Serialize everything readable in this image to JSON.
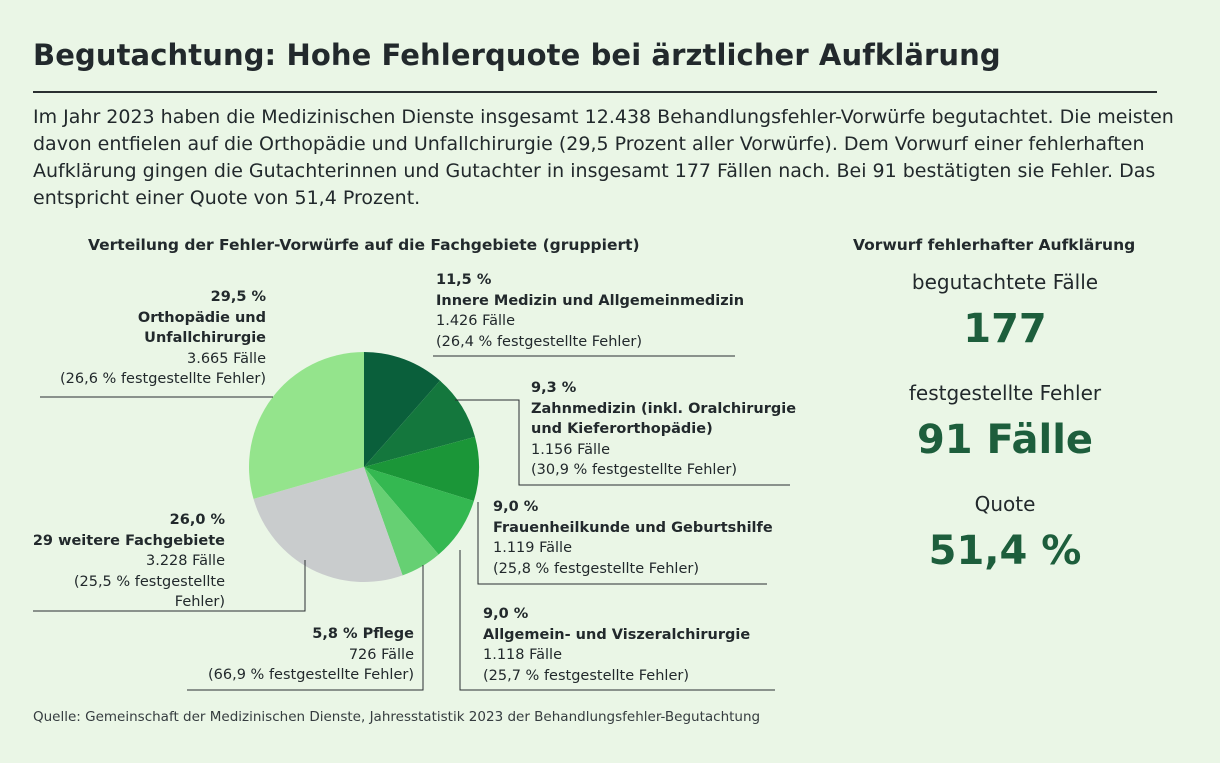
{
  "title": "Begutachtung: Hohe Fehlerquote bei ärztlicher Aufklärung",
  "intro": "Im Jahr 2023 haben die Medizinischen Dienste insgesamt 12.438 Behandlungsfehler-Vorwürfe begutachtet. Die meisten davon entfielen auf die Orthopädie und Unfallchirurgie (29,5 Prozent aller Vorwürfe). Dem Vorwurf einer fehlerhaften Aufklärung gingen die Gutachterinnen und Gutachter in insgesamt 177 Fällen nach. Bei 91 bestätigten sie Fehler. Das entspricht einer Quote von 51,4 Prozent.",
  "source": "Quelle: Gemeinschaft der Medizinischen Dienste, Jahresstatistik 2023 der Behandlungsfehler-Begutachtung",
  "chart_data": {
    "type": "pie",
    "title": "Verteilung der Fehler-Vorwürfe auf die Fachgebiete (gruppiert)",
    "slices": [
      {
        "pct_label": "11,5 %",
        "value": 11.5,
        "name": "Innere Medizin und Allgemeinmedizin",
        "name2": "",
        "cases": "1.426 Fälle",
        "errors": "(26,4 % festgestellte Fehler)",
        "color": "#0a5f3b"
      },
      {
        "pct_label": "9,3 %",
        "value": 9.3,
        "name": "Zahnmedizin (inkl. Oralchirurgie",
        "name2": "und Kieferorthopädie)",
        "cases": "1.156 Fälle",
        "errors": "(30,9 % festgestellte Fehler)",
        "color": "#14773d"
      },
      {
        "pct_label": "9,0 %",
        "value": 9.0,
        "name": "Frauenheilkunde und Geburtshilfe",
        "name2": "",
        "cases": "1.119 Fälle",
        "errors": "(25,8 % festgestellte Fehler)",
        "color": "#1b9638"
      },
      {
        "pct_label": "9,0 %",
        "value": 9.0,
        "name": "Allgemein- und Viszeralchirurgie",
        "name2": "",
        "cases": "1.118 Fälle",
        "errors": "(25,7 % festgestellte Fehler)",
        "color": "#34b851"
      },
      {
        "pct_label": "5,8 %",
        "value": 5.8,
        "name": "Pflege",
        "name2": "",
        "cases": "726 Fälle",
        "errors": "(66,9 % festgestellte Fehler)",
        "color": "#66d073"
      },
      {
        "pct_label": "26,0 %",
        "value": 26.0,
        "name": "29 weitere Fachgebiete",
        "name2": "",
        "cases": "3.228 Fälle",
        "errors": "(25,5 % festgestellte",
        "errors2": "Fehler)",
        "color": "#c9cccd"
      },
      {
        "pct_label": "29,5 %",
        "value": 29.5,
        "name": "Orthopädie und",
        "name2": "Unfallchirurgie",
        "cases": "3.665 Fälle",
        "errors": "(26,6 % festgestellte Fehler)",
        "color": "#94e48c"
      }
    ]
  },
  "kpis": {
    "heading": "Vorwurf fehlerhafter Aufklärung",
    "cases_label": "begutachtete Fälle",
    "cases_value": "177",
    "errors_label": "festgestellte Fehler",
    "errors_value": "91 Fälle",
    "rate_label": "Quote",
    "rate_value": "51,4 %"
  }
}
